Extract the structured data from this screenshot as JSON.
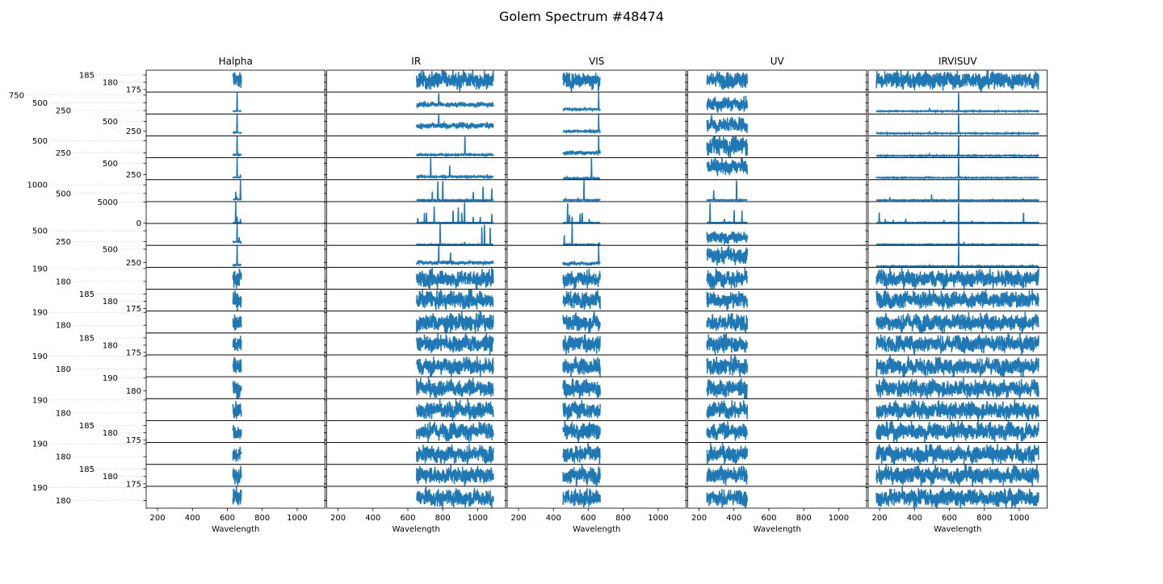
{
  "chart_data": {
    "type": "line",
    "title": "Golem Spectrum #48474",
    "xlabel": "Wavelength",
    "xlim": [
      135,
      1160
    ],
    "xticks": [
      200,
      400,
      600,
      800,
      1000
    ],
    "line_color": "#1f77b4",
    "sharey": "row",
    "columns": [
      {
        "title": "Halpha",
        "range": [
          632,
          680
        ]
      },
      {
        "title": "IR",
        "range": [
          650,
          1090
        ]
      },
      {
        "title": "VIS",
        "range": [
          455,
          668
        ]
      },
      {
        "title": "UV",
        "range": [
          245,
          477
        ]
      },
      {
        "title": "IRVISUV",
        "range": [
          182,
          1112
        ]
      }
    ],
    "rows": [
      {
        "ylim": [
          173.3,
          188.3
        ],
        "yticks": [
          175,
          180,
          185
        ],
        "baseline": 181.5,
        "noise": 3.5
      },
      {
        "ylim": [
          137,
          847
        ],
        "yticks": [
          250,
          500,
          750
        ],
        "panels": [
          {
            "baseline": 230,
            "noise": 5,
            "peaks": [
              [
                656,
                840
              ]
            ]
          },
          {
            "baseline": 440,
            "noise": 45,
            "peaks": [
              [
                777,
                840
              ],
              [
                700,
                560
              ]
            ]
          },
          {
            "baseline": 290,
            "noise": 18,
            "peaks": [
              [
                659,
                840
              ]
            ]
          },
          {
            "baseline": 470,
            "noise": 140,
            "peaks": []
          },
          {
            "baseline": 228,
            "noise": 6,
            "peaks": [
              [
                486,
                330
              ],
              [
                653,
                840
              ]
            ]
          }
        ]
      },
      {
        "ylim": [
          134,
          683
        ],
        "yticks": [
          250,
          500
        ],
        "panels": [
          {
            "baseline": 215,
            "noise": 5,
            "peaks": [
              [
                656,
                680
              ]
            ]
          },
          {
            "baseline": 390,
            "noise": 45,
            "peaks": [
              [
                777,
                680
              ]
            ]
          },
          {
            "baseline": 250,
            "noise": 18,
            "peaks": [
              [
                659,
                680
              ]
            ]
          },
          {
            "baseline": 420,
            "noise": 110,
            "peaks": []
          },
          {
            "baseline": 195,
            "noise": 5,
            "peaks": [
              [
                486,
                260
              ],
              [
                653,
                680
              ]
            ]
          }
        ]
      },
      {
        "ylim": [
          150,
          600
        ],
        "yticks": [
          250,
          500
        ],
        "panels": [
          {
            "baseline": 210,
            "noise": 5,
            "peaks": [
              [
                656,
                600
              ]
            ]
          },
          {
            "baseline": 210,
            "noise": 8,
            "peaks": [
              [
                927,
                600
              ]
            ]
          },
          {
            "baseline": 250,
            "noise": 22,
            "peaks": [
              [
                659,
                600
              ]
            ]
          },
          {
            "baseline": 400,
            "noise": 120,
            "peaks": []
          },
          {
            "baseline": 190,
            "noise": 5,
            "peaks": [
              [
                486,
                230
              ],
              [
                653,
                600
              ]
            ]
          }
        ]
      },
      {
        "ylim": [
          137,
          620
        ],
        "yticks": [
          250,
          500
        ],
        "panels": [
          {
            "baseline": 190,
            "noise": 4,
            "peaks": [
              [
                656,
                620
              ],
              [
                675,
                240
              ]
            ]
          },
          {
            "baseline": 200,
            "noise": 8,
            "peaks": [
              [
                731,
                620
              ],
              [
                840,
                460
              ],
              [
                1054,
                260
              ]
            ]
          },
          {
            "baseline": 165,
            "noise": 6,
            "peaks": [
              [
                618,
                620
              ],
              [
                480,
                200
              ],
              [
                595,
                180
              ]
            ]
          },
          {
            "baseline": 420,
            "noise": 100,
            "peaks": []
          },
          {
            "baseline": 180,
            "noise": 4,
            "peaks": [
              [
                470,
                210
              ],
              [
                486,
                220
              ],
              [
                653,
                620
              ]
            ]
          }
        ]
      },
      {
        "ylim": [
          30,
          1300
        ],
        "yticks": [
          500,
          1000
        ],
        "panels": [
          {
            "baseline": 150,
            "noise": 8,
            "peaks": [
              [
                648,
                600
              ],
              [
                656,
                300
              ],
              [
                675,
                1300
              ]
            ]
          },
          {
            "baseline": 110,
            "noise": 10,
            "peaks": [
              [
                740,
                600
              ],
              [
                772,
                1300
              ],
              [
                800,
                1300
              ],
              [
                975,
                600
              ],
              [
                1031,
                900
              ],
              [
                1081,
                800
              ]
            ]
          },
          {
            "baseline": 120,
            "noise": 10,
            "peaks": [
              [
                575,
                1300
              ],
              [
                470,
                200
              ],
              [
                540,
                180
              ]
            ]
          },
          {
            "baseline": 120,
            "noise": 10,
            "peaks": [
              [
                284,
                700
              ],
              [
                415,
                1300
              ]
            ]
          },
          {
            "baseline": 110,
            "noise": 8,
            "peaks": [
              [
                259,
                300
              ],
              [
                465,
                150
              ],
              [
                498,
                450
              ],
              [
                653,
                1300
              ],
              [
                846,
                200
              ],
              [
                1024,
                200
              ]
            ]
          }
        ]
      },
      {
        "ylim": [
          -100,
          5100
        ],
        "yticks": [
          0,
          5000
        ],
        "panels": [
          {
            "baseline": 100,
            "noise": 30,
            "peaks": [
              [
                648,
                5000
              ],
              [
                656,
                1500
              ],
              [
                675,
                1000
              ]
            ]
          },
          {
            "baseline": 100,
            "noise": 30,
            "peaks": [
              [
                657,
                1250
              ],
              [
                695,
                2500
              ],
              [
                707,
                2500
              ],
              [
                751,
                4000
              ],
              [
                859,
                3000
              ],
              [
                889,
                3750
              ],
              [
                909,
                2500
              ],
              [
                925,
                5000
              ],
              [
                975,
                1500
              ],
              [
                1015,
                1500
              ],
              [
                1081,
                2250
              ]
            ]
          },
          {
            "baseline": 100,
            "noise": 30,
            "peaks": [
              [
                481,
                5000
              ],
              [
                492,
                2000
              ],
              [
                507,
                1500
              ],
              [
                553,
                2250
              ],
              [
                565,
                2500
              ],
              [
                605,
                1000
              ]
            ]
          },
          {
            "baseline": 100,
            "noise": 30,
            "peaks": [
              [
                263,
                5000
              ],
              [
                345,
                1000
              ],
              [
                401,
                3000
              ],
              [
                446,
                3000
              ]
            ]
          },
          {
            "baseline": 100,
            "noise": 30,
            "peaks": [
              [
                198,
                2500
              ],
              [
                233,
                1000
              ],
              [
                279,
                750
              ],
              [
                350,
                1000
              ],
              [
                465,
                300
              ],
              [
                569,
                750
              ],
              [
                653,
                5000
              ],
              [
                730,
                400
              ],
              [
                1025,
                2500
              ]
            ]
          }
        ]
      },
      {
        "ylim": [
          162,
          669
        ],
        "yticks": [
          250,
          500
        ],
        "panels": [
          {
            "baseline": 240,
            "noise": 5,
            "peaks": [
              [
                656,
                669
              ],
              [
                668,
                350
              ]
            ]
          },
          {
            "baseline": 180,
            "noise": 4,
            "peaks": [
              [
                785,
                669
              ],
              [
                925,
                250
              ],
              [
                1024,
                600
              ],
              [
                1039,
                650
              ],
              [
                1072,
                580
              ]
            ]
          },
          {
            "baseline": 180,
            "noise": 4,
            "peaks": [
              [
                462,
                400
              ],
              [
                507,
                669
              ],
              [
                659,
                230
              ]
            ]
          },
          {
            "baseline": 340,
            "noise": 80,
            "peaks": []
          },
          {
            "baseline": 180,
            "noise": 4,
            "peaks": [
              [
                486,
                210
              ],
              [
                653,
                669
              ],
              [
                683,
                240
              ]
            ]
          }
        ]
      },
      {
        "ylim": [
          158,
          572
        ],
        "yticks": [
          250,
          500
        ],
        "panels": [
          {
            "baseline": 200,
            "noise": 4,
            "peaks": [
              [
                656,
                572
              ]
            ]
          },
          {
            "baseline": 245,
            "noise": 22,
            "peaks": [
              [
                777,
                572
              ],
              [
                845,
                450
              ]
            ]
          },
          {
            "baseline": 230,
            "noise": 18,
            "peaks": [
              [
                659,
                572
              ]
            ]
          },
          {
            "baseline": 380,
            "noise": 90,
            "peaks": []
          },
          {
            "baseline": 175,
            "noise": 4,
            "peaks": [
              [
                486,
                195
              ],
              [
                653,
                572
              ],
              [
                770,
                200
              ]
            ]
          }
        ]
      },
      {
        "ylim": [
          174,
          191
        ],
        "yticks": [
          180,
          190
        ],
        "baseline": 182,
        "noise": 4
      },
      {
        "ylim": [
          173.3,
          188.3
        ],
        "yticks": [
          175,
          180,
          185
        ],
        "baseline": 181,
        "noise": 3.5
      },
      {
        "ylim": [
          174,
          191
        ],
        "yticks": [
          180,
          190
        ],
        "baseline": 182,
        "noise": 4
      },
      {
        "ylim": [
          173.3,
          188.3
        ],
        "yticks": [
          175,
          180,
          185
        ],
        "baseline": 181,
        "noise": 3.5
      },
      {
        "ylim": [
          174,
          191
        ],
        "yticks": [
          180,
          190
        ],
        "baseline": 182,
        "noise": 4
      },
      {
        "ylim": [
          174,
          191
        ],
        "yticks": [
          180,
          190
        ],
        "baseline": 182,
        "noise": 4
      },
      {
        "ylim": [
          174,
          191
        ],
        "yticks": [
          180,
          190
        ],
        "baseline": 182,
        "noise": 4
      },
      {
        "ylim": [
          173.3,
          188.3
        ],
        "yticks": [
          175,
          180,
          185
        ],
        "baseline": 181,
        "noise": 3.5
      },
      {
        "ylim": [
          174,
          191
        ],
        "yticks": [
          180,
          190
        ],
        "baseline": 182,
        "noise": 4
      },
      {
        "ylim": [
          173.3,
          188.3
        ],
        "yticks": [
          175,
          180,
          185
        ],
        "baseline": 181,
        "noise": 3.5
      },
      {
        "ylim": [
          174,
          191
        ],
        "yticks": [
          180,
          190
        ],
        "baseline": 182,
        "noise": 4
      }
    ]
  }
}
